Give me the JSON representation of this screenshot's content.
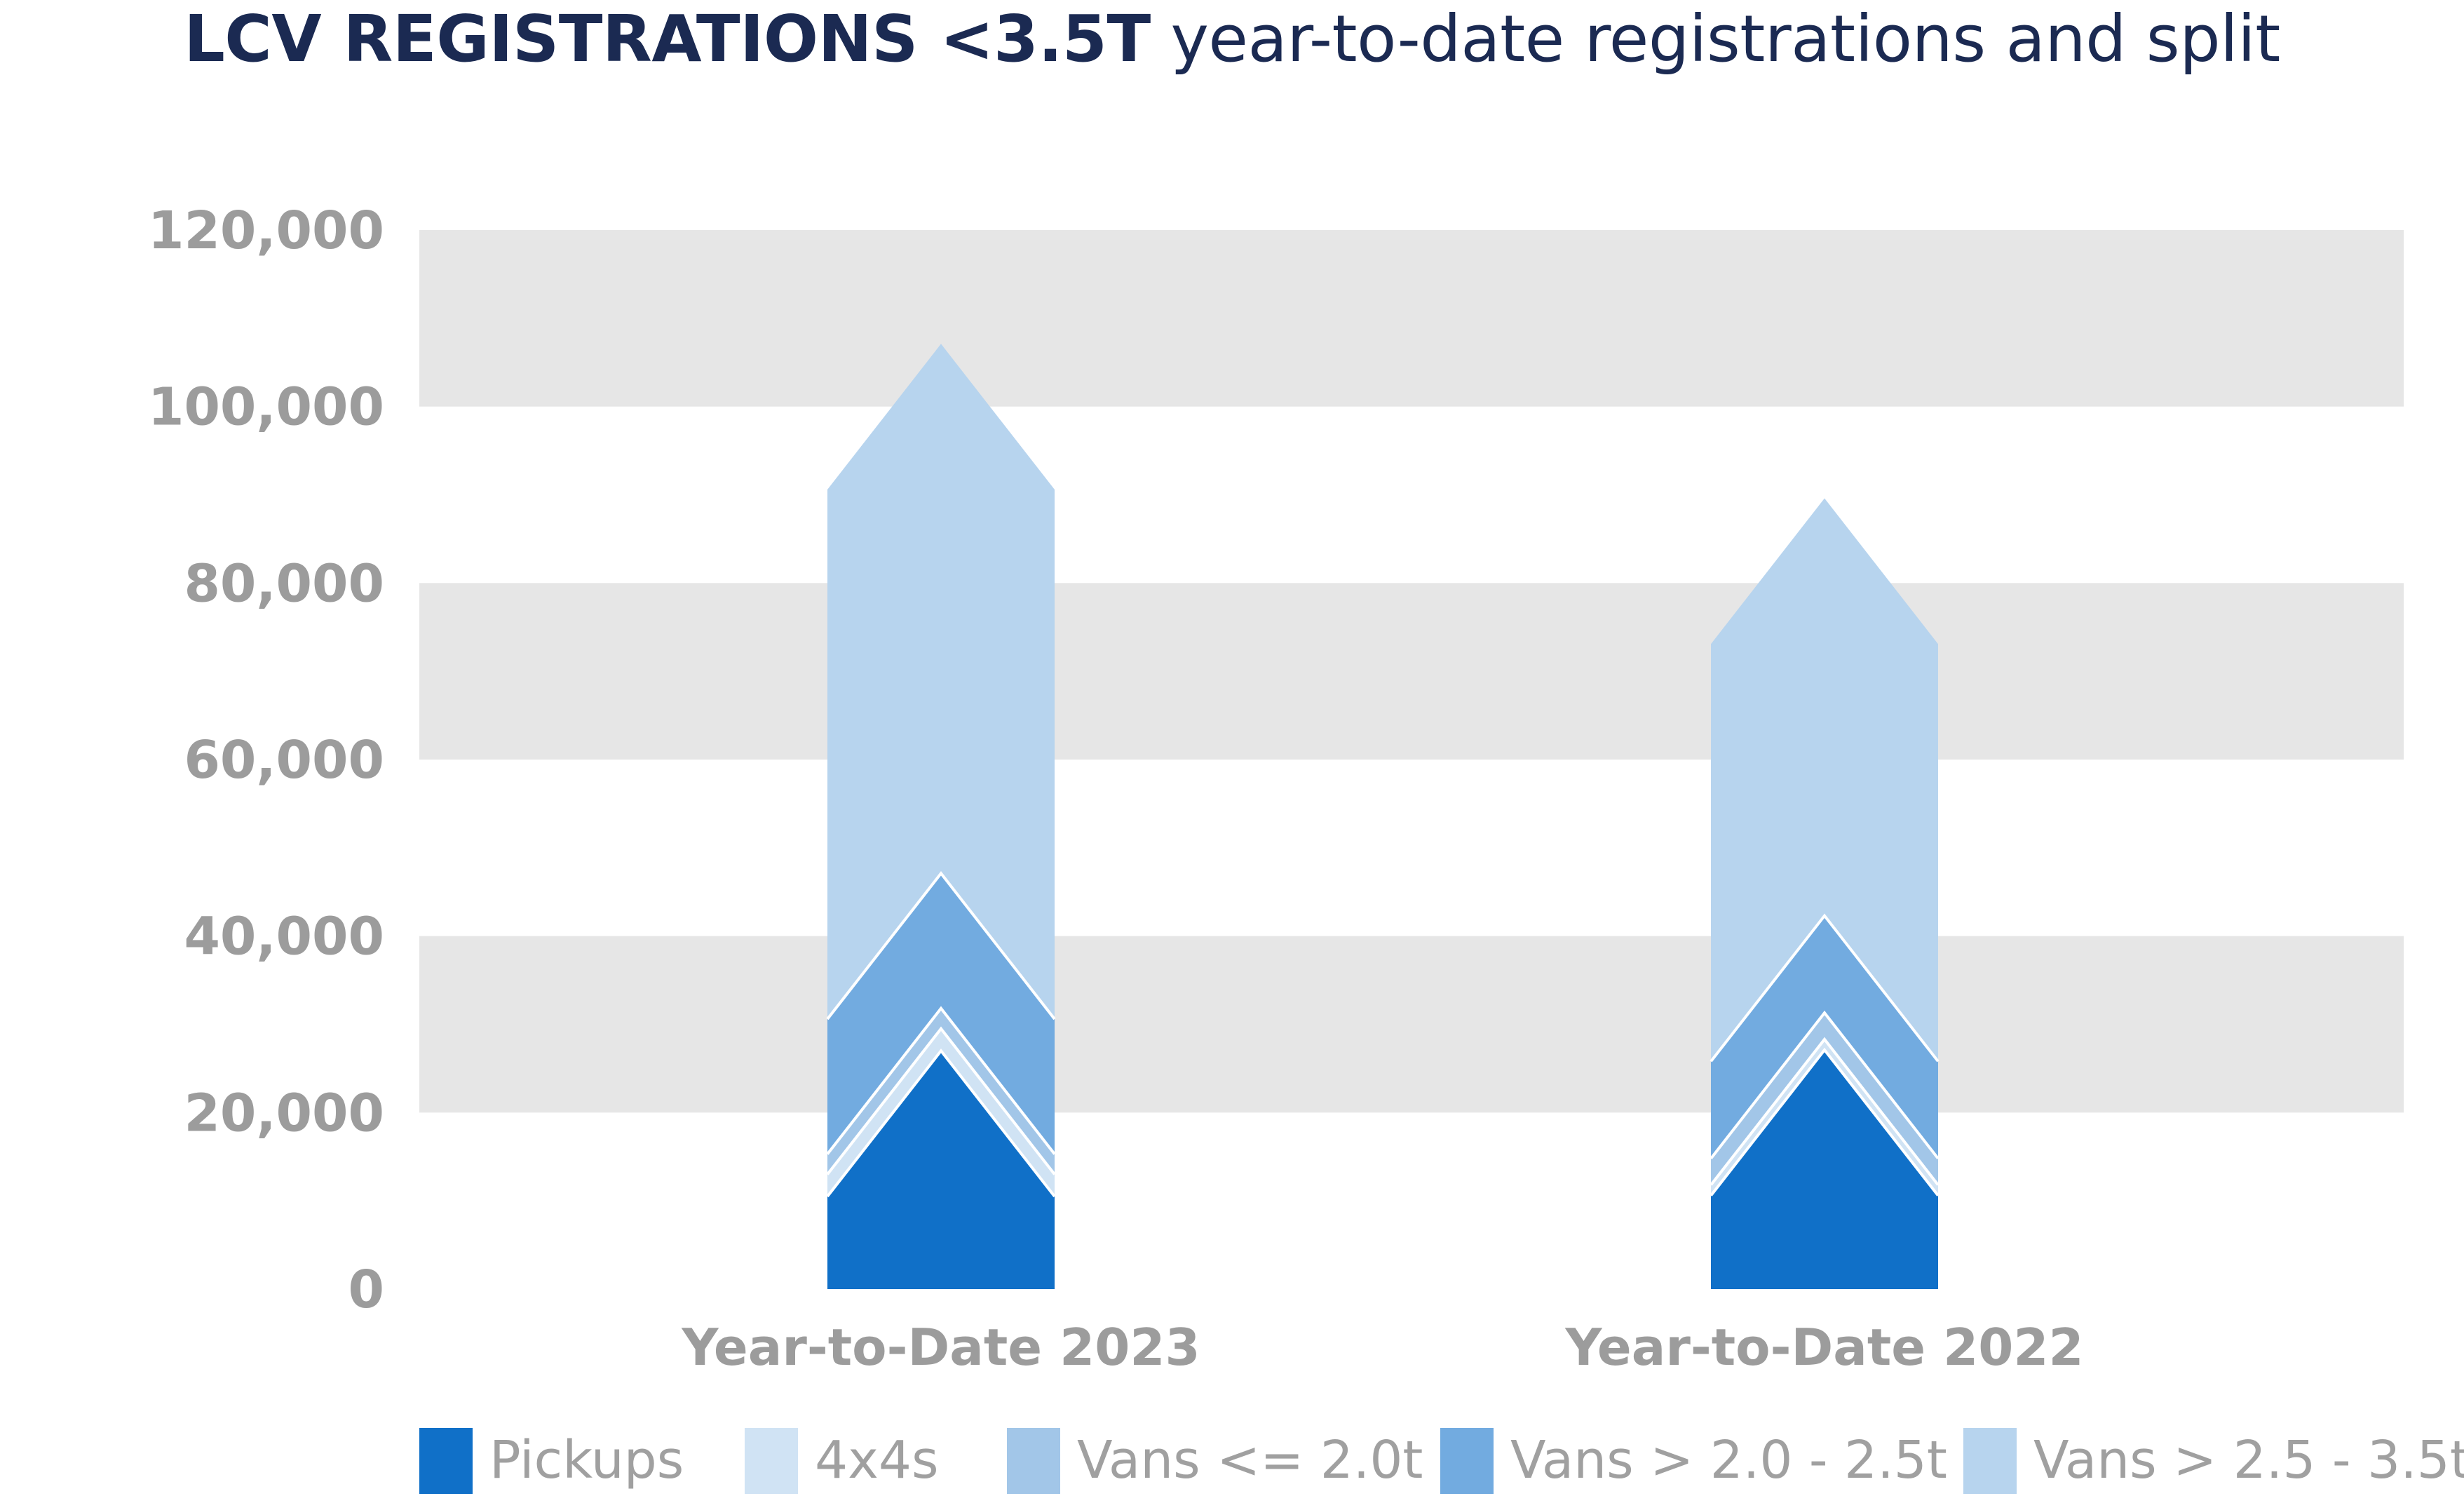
{
  "title_bold": "LCV REGISTRATIONS <3.5T",
  "title_light": "year-to-date registrations and split",
  "chart_data": {
    "type": "bar",
    "stacked": true,
    "title": "LCV REGISTRATIONS <3.5T year-to-date registrations and split",
    "categories": [
      "Year-to-Date 2023",
      "Year-to-Date 2022"
    ],
    "series": [
      {
        "name": "Pickups",
        "color": "#1070c8",
        "values": [
          10500,
          10600
        ]
      },
      {
        "name": "4x4s",
        "color": "#d0e3f4",
        "values": [
          2500,
          1200
        ]
      },
      {
        "name": "Vans <= 2.0t",
        "color": "#a2c6e8",
        "values": [
          2300,
          3000
        ]
      },
      {
        "name": "Vans > 2.0 - 2.5t",
        "color": "#72abe0",
        "values": [
          15300,
          11000
        ]
      },
      {
        "name": "Vans > 2.5 - 3.5t",
        "color": "#b7d4ee",
        "values": [
          60000,
          47300
        ]
      }
    ],
    "yticks": [
      0,
      20000,
      40000,
      60000,
      80000,
      100000,
      120000
    ],
    "ytick_labels": [
      "0",
      "20,000",
      "40,000",
      "60,000",
      "80,000",
      "100,000",
      "120,000"
    ],
    "ylim": [
      0,
      120000
    ],
    "grid": true,
    "legend": "bottom"
  }
}
